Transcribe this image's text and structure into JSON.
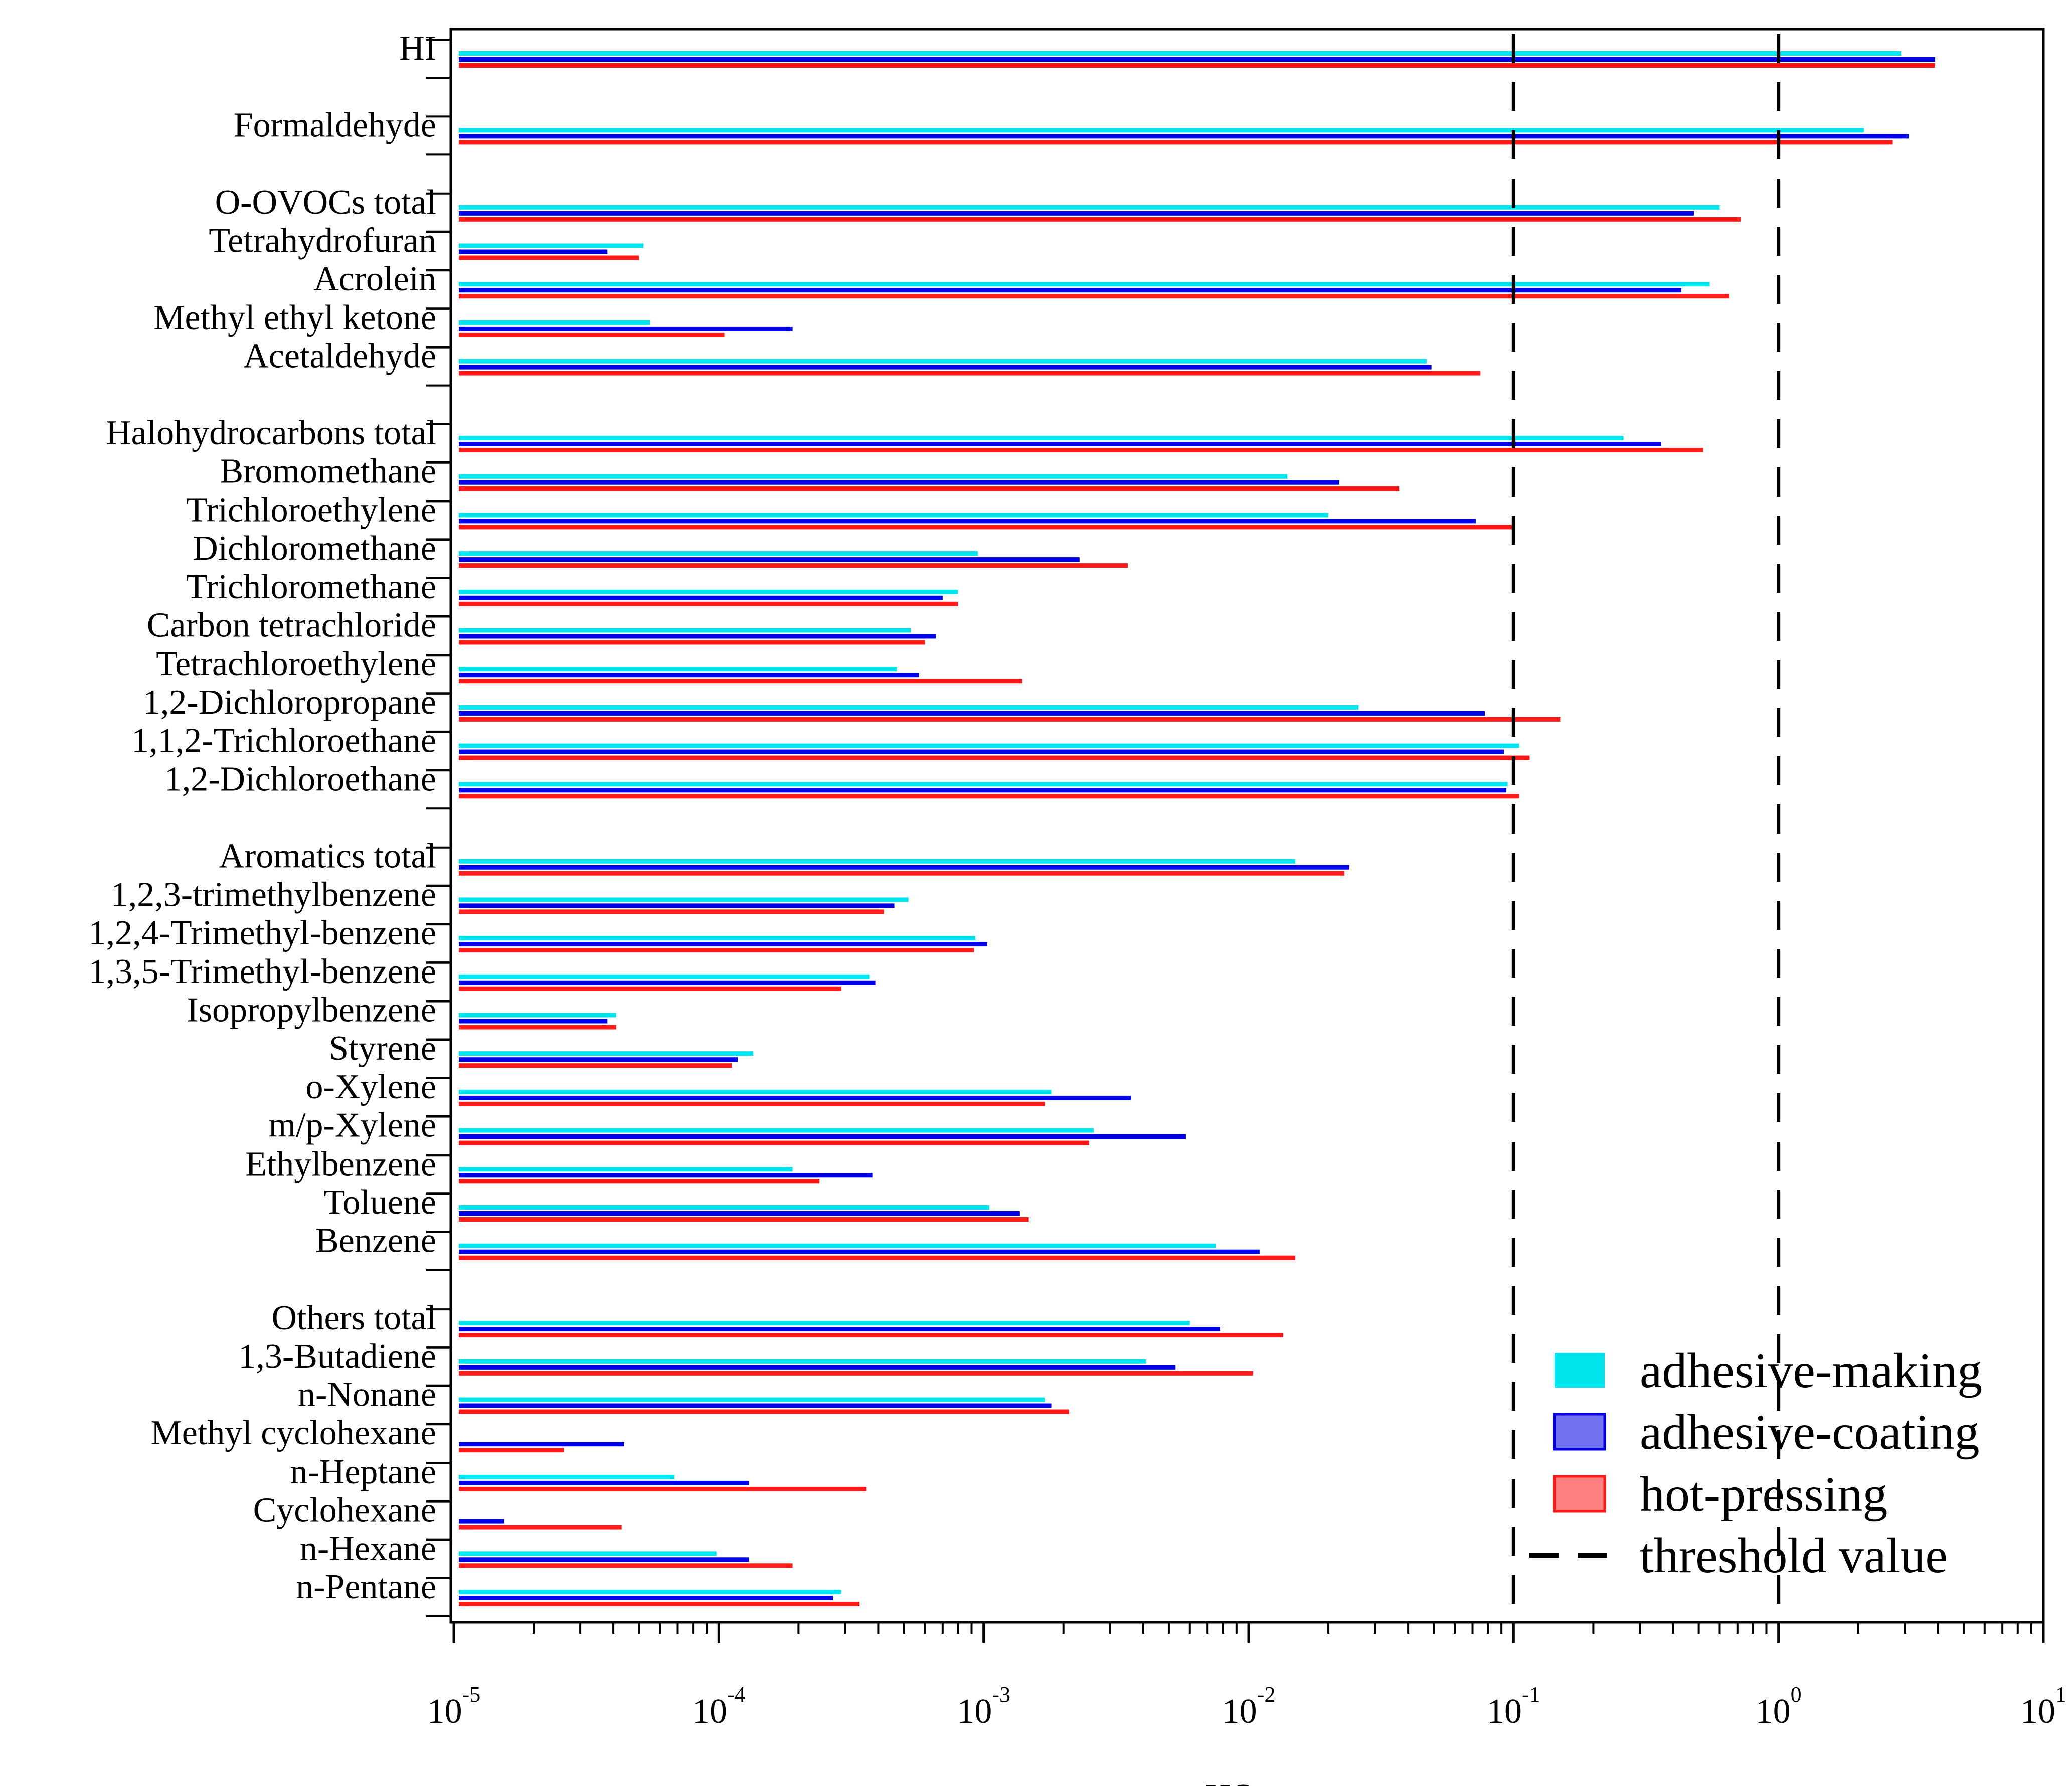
{
  "chart_data": {
    "type": "bar",
    "orientation": "horizontal",
    "x_scale": "log",
    "xlim": [
      1e-05,
      10
    ],
    "xlabel": "HQ",
    "xlabel_subscript": "i",
    "x_ticks": [
      {
        "value": 1e-05,
        "base": "10",
        "exp": "-5"
      },
      {
        "value": 0.0001,
        "base": "10",
        "exp": "-4"
      },
      {
        "value": 0.001,
        "base": "10",
        "exp": "-3"
      },
      {
        "value": 0.01,
        "base": "10",
        "exp": "-2"
      },
      {
        "value": 0.1,
        "base": "10",
        "exp": "-1"
      },
      {
        "value": 1,
        "base": "10",
        "exp": "0"
      },
      {
        "value": 10,
        "base": "10",
        "exp": "1"
      }
    ],
    "threshold_values": [
      0.1,
      1
    ],
    "legend_position": "bottom-right",
    "legend": [
      {
        "key": "making",
        "label": "adhesive-making",
        "color": "#00e5ee",
        "type": "bar"
      },
      {
        "key": "coating",
        "label": "adhesive-coating",
        "color": "#0000e6",
        "type": "bar"
      },
      {
        "key": "pressing",
        "label": "hot-pressing",
        "color": "#ff1a1a",
        "type": "bar"
      },
      {
        "key": "threshold",
        "label": "threshold value",
        "color": "#000000",
        "type": "dash"
      }
    ],
    "series_names": [
      "adhesive-making",
      "adhesive-coating",
      "hot-pressing"
    ],
    "categories": [
      {
        "label": "HI",
        "values": [
          2.9,
          3.9,
          3.9
        ]
      },
      {
        "label": "Formaldehyde",
        "values": [
          2.1,
          3.1,
          2.7
        ]
      },
      {
        "label": "O-OVOCs total",
        "values": [
          0.6,
          0.48,
          0.72
        ]
      },
      {
        "label": "Tetrahydrofuran",
        "values": [
          5.2e-05,
          3.8e-05,
          5e-05
        ]
      },
      {
        "label": "Acrolein",
        "values": [
          0.55,
          0.43,
          0.65
        ]
      },
      {
        "label": "Methyl ethyl ketone",
        "values": [
          5.5e-05,
          0.00019,
          0.000105
        ]
      },
      {
        "label": "Acetaldehyde",
        "values": [
          0.047,
          0.049,
          0.075
        ]
      },
      {
        "label": "Halohydrocarbons total",
        "values": [
          0.26,
          0.36,
          0.52
        ]
      },
      {
        "label": "Bromomethane",
        "values": [
          0.014,
          0.022,
          0.037
        ]
      },
      {
        "label": "Trichloroethylene",
        "values": [
          0.02,
          0.072,
          0.1
        ]
      },
      {
        "label": "Dichloromethane",
        "values": [
          0.00095,
          0.0023,
          0.0035
        ]
      },
      {
        "label": "Trichloromethane",
        "values": [
          0.0008,
          0.0007,
          0.0008
        ]
      },
      {
        "label": "Carbon tetrachloride",
        "values": [
          0.00053,
          0.00066,
          0.0006
        ]
      },
      {
        "label": "Tetrachloroethylene",
        "values": [
          0.00047,
          0.00057,
          0.0014
        ]
      },
      {
        "label": "1,2-Dichloropropane",
        "values": [
          0.026,
          0.078,
          0.15
        ]
      },
      {
        "label": "1,1,2-Trichloroethane",
        "values": [
          0.105,
          0.092,
          0.115
        ]
      },
      {
        "label": "1,2-Dichloroethane",
        "values": [
          0.095,
          0.094,
          0.105
        ]
      },
      {
        "label": "Aromatics total",
        "values": [
          0.015,
          0.024,
          0.023
        ]
      },
      {
        "label": "1,2,3-trimethylbenzene",
        "values": [
          0.00052,
          0.00046,
          0.00042
        ]
      },
      {
        "label": "1,2,4-Trimethyl-benzene",
        "values": [
          0.00093,
          0.00103,
          0.00092
        ]
      },
      {
        "label": "1,3,5-Trimethyl-benzene",
        "values": [
          0.00037,
          0.00039,
          0.00029
        ]
      },
      {
        "label": "Isopropylbenzene",
        "values": [
          4.1e-05,
          3.8e-05,
          4.1e-05
        ]
      },
      {
        "label": "Styrene",
        "values": [
          0.000135,
          0.000118,
          0.000112
        ]
      },
      {
        "label": "o-Xylene",
        "values": [
          0.0018,
          0.0036,
          0.0017
        ]
      },
      {
        "label": "m/p-Xylene",
        "values": [
          0.0026,
          0.0058,
          0.0025
        ]
      },
      {
        "label": "Ethylbenzene",
        "values": [
          0.00019,
          0.00038,
          0.00024
        ]
      },
      {
        "label": "Toluene",
        "values": [
          0.00105,
          0.00137,
          0.00148
        ]
      },
      {
        "label": "Benzene",
        "values": [
          0.0075,
          0.011,
          0.015
        ]
      },
      {
        "label": "Others total",
        "values": [
          0.006,
          0.0078,
          0.0135
        ]
      },
      {
        "label": "1,3-Butadiene",
        "values": [
          0.0041,
          0.0053,
          0.0104
        ]
      },
      {
        "label": "n-Nonane",
        "values": [
          0.0017,
          0.0018,
          0.0021
        ]
      },
      {
        "label": "Methyl cyclohexane",
        "values": [
          null,
          4.4e-05,
          2.6e-05
        ]
      },
      {
        "label": "n-Heptane",
        "values": [
          6.8e-05,
          0.00013,
          0.00036
        ]
      },
      {
        "label": "Cyclohexane",
        "values": [
          null,
          1.55e-05,
          4.3e-05
        ]
      },
      {
        "label": "n-Hexane",
        "values": [
          9.8e-05,
          0.00013,
          0.00019
        ]
      },
      {
        "label": "n-Pentane",
        "values": [
          0.00029,
          0.00027,
          0.00034
        ]
      }
    ]
  }
}
